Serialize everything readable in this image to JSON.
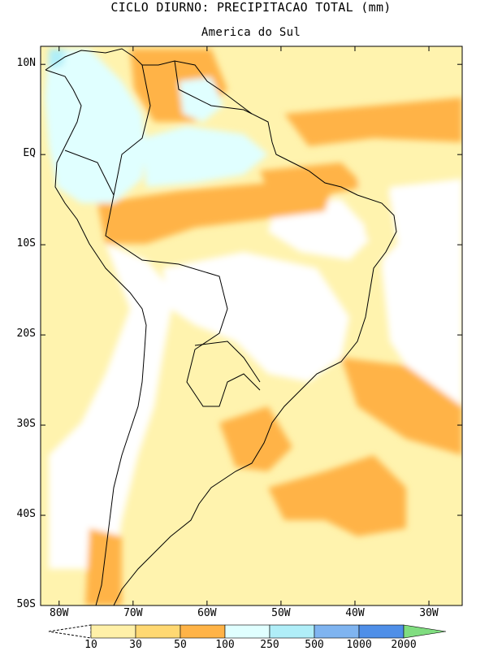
{
  "title": "CICLO DIURNO: PRECIPITACAO TOTAL (mm)",
  "subtitle": "America do Sul",
  "chart_data": {
    "type": "heatmap",
    "title": "CICLO DIURNO: PRECIPITACAO TOTAL (mm)",
    "subtitle": "America do Sul",
    "lon_range": [
      -82.5,
      -25.5
    ],
    "lat_range": [
      -50,
      12
    ],
    "y_ticks": [
      "10N",
      "EQ",
      "10S",
      "20S",
      "30S",
      "40S",
      "50S"
    ],
    "y_tick_values": [
      10,
      0,
      -10,
      -20,
      -30,
      -40,
      -50
    ],
    "x_ticks": [
      "80W",
      "70W",
      "60W",
      "50W",
      "40W",
      "30W"
    ],
    "x_tick_values": [
      -80,
      -70,
      -60,
      -50,
      -40,
      -30
    ],
    "colorbar": {
      "levels": [
        "10",
        "30",
        "50",
        "100",
        "250",
        "500",
        "1000",
        "2000"
      ],
      "colors": [
        "#ffffff",
        "#fff0a8",
        "#ffd872",
        "#ffb347",
        "#e0ffff",
        "#b0eef8",
        "#7fb4f0",
        "#4f8fe8",
        "#80dd80"
      ]
    }
  }
}
